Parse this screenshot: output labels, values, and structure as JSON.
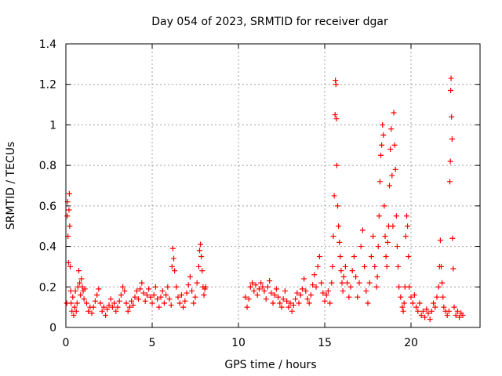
{
  "chart_data": {
    "type": "scatter",
    "title": "Day 054 of 2023, SRMTID for receiver dgar",
    "xlabel": "GPS time / hours",
    "ylabel": "SRMTID / TECUs",
    "xlim": [
      0,
      24
    ],
    "ylim": [
      0,
      1.4
    ],
    "x_ticks": [
      0,
      5,
      10,
      15,
      20
    ],
    "x_tick_labels": [
      "0",
      "5",
      "10",
      "15",
      "20"
    ],
    "y_ticks": [
      0,
      0.2,
      0.4,
      0.6,
      0.8,
      1.0,
      1.2,
      1.4
    ],
    "y_tick_labels": [
      "0",
      "0.2",
      "0.4",
      "0.6",
      "0.8",
      "1",
      "1.2",
      "1.4"
    ],
    "grid": true,
    "marker": "plus",
    "series": [
      {
        "name": "SRMTID",
        "color": "#ff0000",
        "points": [
          [
            0.05,
            0.12
          ],
          [
            0.08,
            0.55
          ],
          [
            0.1,
            0.62
          ],
          [
            0.12,
            0.45
          ],
          [
            0.15,
            0.32
          ],
          [
            0.18,
            0.58
          ],
          [
            0.2,
            0.66
          ],
          [
            0.22,
            0.5
          ],
          [
            0.25,
            0.3
          ],
          [
            0.28,
            0.18
          ],
          [
            0.3,
            0.12
          ],
          [
            0.35,
            0.08
          ],
          [
            0.4,
            0.15
          ],
          [
            0.45,
            0.06
          ],
          [
            0.5,
            0.1
          ],
          [
            0.55,
            0.18
          ],
          [
            0.6,
            0.08
          ],
          [
            0.65,
            0.12
          ],
          [
            0.7,
            0.2
          ],
          [
            0.75,
            0.28
          ],
          [
            0.8,
            0.22
          ],
          [
            0.85,
            0.16
          ],
          [
            0.9,
            0.24
          ],
          [
            0.95,
            0.2
          ],
          [
            1.0,
            0.18
          ],
          [
            1.05,
            0.14
          ],
          [
            1.1,
            0.19
          ],
          [
            1.2,
            0.12
          ],
          [
            1.3,
            0.08
          ],
          [
            1.4,
            0.1
          ],
          [
            1.5,
            0.07
          ],
          [
            1.6,
            0.1
          ],
          [
            1.7,
            0.13
          ],
          [
            1.8,
            0.16
          ],
          [
            1.9,
            0.19
          ],
          [
            2.0,
            0.12
          ],
          [
            2.1,
            0.08
          ],
          [
            2.2,
            0.1
          ],
          [
            2.3,
            0.06
          ],
          [
            2.4,
            0.09
          ],
          [
            2.5,
            0.11
          ],
          [
            2.6,
            0.14
          ],
          [
            2.7,
            0.1
          ],
          [
            2.8,
            0.12
          ],
          [
            2.9,
            0.08
          ],
          [
            3.0,
            0.1
          ],
          [
            3.1,
            0.13
          ],
          [
            3.2,
            0.16
          ],
          [
            3.3,
            0.2
          ],
          [
            3.4,
            0.18
          ],
          [
            3.5,
            0.12
          ],
          [
            3.6,
            0.08
          ],
          [
            3.7,
            0.1
          ],
          [
            3.8,
            0.13
          ],
          [
            3.9,
            0.11
          ],
          [
            4.0,
            0.15
          ],
          [
            4.1,
            0.18
          ],
          [
            4.2,
            0.14
          ],
          [
            4.3,
            0.19
          ],
          [
            4.4,
            0.22
          ],
          [
            4.5,
            0.17
          ],
          [
            4.6,
            0.13
          ],
          [
            4.7,
            0.16
          ],
          [
            4.8,
            0.19
          ],
          [
            4.9,
            0.15
          ],
          [
            5.0,
            0.12
          ],
          [
            5.1,
            0.16
          ],
          [
            5.2,
            0.2
          ],
          [
            5.3,
            0.14
          ],
          [
            5.4,
            0.1
          ],
          [
            5.5,
            0.15
          ],
          [
            5.6,
            0.18
          ],
          [
            5.7,
            0.12
          ],
          [
            5.8,
            0.16
          ],
          [
            5.9,
            0.2
          ],
          [
            6.0,
            0.14
          ],
          [
            6.1,
            0.11
          ],
          [
            6.15,
            0.3
          ],
          [
            6.2,
            0.39
          ],
          [
            6.25,
            0.34
          ],
          [
            6.3,
            0.28
          ],
          [
            6.4,
            0.2
          ],
          [
            6.5,
            0.15
          ],
          [
            6.6,
            0.12
          ],
          [
            6.7,
            0.16
          ],
          [
            6.8,
            0.1
          ],
          [
            6.9,
            0.13
          ],
          [
            7.0,
            0.17
          ],
          [
            7.1,
            0.21
          ],
          [
            7.2,
            0.25
          ],
          [
            7.3,
            0.18
          ],
          [
            7.4,
            0.12
          ],
          [
            7.5,
            0.15
          ],
          [
            7.6,
            0.22
          ],
          [
            7.7,
            0.3
          ],
          [
            7.75,
            0.38
          ],
          [
            7.8,
            0.41
          ],
          [
            7.85,
            0.35
          ],
          [
            7.9,
            0.28
          ],
          [
            7.95,
            0.2
          ],
          [
            8.0,
            0.16
          ],
          [
            8.05,
            0.19
          ],
          [
            8.1,
            0.2
          ],
          [
            10.4,
            0.15
          ],
          [
            10.5,
            0.1
          ],
          [
            10.6,
            0.14
          ],
          [
            10.7,
            0.2
          ],
          [
            10.8,
            0.22
          ],
          [
            10.9,
            0.18
          ],
          [
            11.0,
            0.21
          ],
          [
            11.1,
            0.16
          ],
          [
            11.2,
            0.19
          ],
          [
            11.3,
            0.22
          ],
          [
            11.4,
            0.2
          ],
          [
            11.5,
            0.18
          ],
          [
            11.6,
            0.14
          ],
          [
            11.7,
            0.2
          ],
          [
            11.8,
            0.23
          ],
          [
            11.9,
            0.17
          ],
          [
            12.0,
            0.12
          ],
          [
            12.1,
            0.16
          ],
          [
            12.2,
            0.19
          ],
          [
            12.3,
            0.15
          ],
          [
            12.4,
            0.12
          ],
          [
            12.5,
            0.1
          ],
          [
            12.6,
            0.14
          ],
          [
            12.7,
            0.18
          ],
          [
            12.8,
            0.13
          ],
          [
            12.9,
            0.1
          ],
          [
            13.0,
            0.12
          ],
          [
            13.1,
            0.08
          ],
          [
            13.2,
            0.11
          ],
          [
            13.3,
            0.14
          ],
          [
            13.4,
            0.17
          ],
          [
            13.5,
            0.12
          ],
          [
            13.6,
            0.16
          ],
          [
            13.7,
            0.19
          ],
          [
            13.8,
            0.24
          ],
          [
            13.9,
            0.18
          ],
          [
            14.0,
            0.14
          ],
          [
            14.1,
            0.12
          ],
          [
            14.2,
            0.16
          ],
          [
            14.3,
            0.21
          ],
          [
            14.4,
            0.26
          ],
          [
            14.5,
            0.2
          ],
          [
            14.6,
            0.3
          ],
          [
            14.7,
            0.35
          ],
          [
            14.8,
            0.22
          ],
          [
            14.9,
            0.17
          ],
          [
            15.0,
            0.13
          ],
          [
            15.1,
            0.16
          ],
          [
            15.2,
            0.18
          ],
          [
            15.3,
            0.12
          ],
          [
            15.4,
            0.22
          ],
          [
            15.45,
            0.3
          ],
          [
            15.5,
            0.45
          ],
          [
            15.55,
            0.65
          ],
          [
            15.6,
            1.05
          ],
          [
            15.62,
            1.22
          ],
          [
            15.65,
            1.2
          ],
          [
            15.68,
            1.03
          ],
          [
            15.7,
            0.8
          ],
          [
            15.75,
            0.6
          ],
          [
            15.8,
            0.5
          ],
          [
            15.85,
            0.42
          ],
          [
            15.9,
            0.35
          ],
          [
            15.95,
            0.28
          ],
          [
            16.0,
            0.22
          ],
          [
            16.05,
            0.18
          ],
          [
            16.1,
            0.25
          ],
          [
            16.2,
            0.3
          ],
          [
            16.3,
            0.22
          ],
          [
            16.4,
            0.15
          ],
          [
            16.5,
            0.2
          ],
          [
            16.6,
            0.28
          ],
          [
            16.7,
            0.35
          ],
          [
            16.8,
            0.25
          ],
          [
            16.9,
            0.15
          ],
          [
            17.0,
            0.22
          ],
          [
            17.1,
            0.4
          ],
          [
            17.2,
            0.48
          ],
          [
            17.3,
            0.3
          ],
          [
            17.4,
            0.18
          ],
          [
            17.5,
            0.12
          ],
          [
            17.6,
            0.22
          ],
          [
            17.7,
            0.35
          ],
          [
            17.8,
            0.45
          ],
          [
            17.9,
            0.3
          ],
          [
            18.0,
            0.2
          ],
          [
            18.05,
            0.25
          ],
          [
            18.1,
            0.4
          ],
          [
            18.15,
            0.55
          ],
          [
            18.2,
            0.72
          ],
          [
            18.25,
            0.85
          ],
          [
            18.3,
            0.9
          ],
          [
            18.35,
            1.0
          ],
          [
            18.4,
            0.95
          ],
          [
            18.45,
            0.6
          ],
          [
            18.5,
            0.45
          ],
          [
            18.55,
            0.35
          ],
          [
            18.6,
            0.3
          ],
          [
            18.65,
            0.42
          ],
          [
            18.7,
            0.5
          ],
          [
            18.75,
            0.7
          ],
          [
            18.8,
            0.88
          ],
          [
            18.85,
            0.98
          ],
          [
            18.9,
            0.75
          ],
          [
            18.95,
            0.5
          ],
          [
            19.0,
            1.06
          ],
          [
            19.05,
            0.9
          ],
          [
            19.1,
            0.78
          ],
          [
            19.15,
            0.55
          ],
          [
            19.2,
            0.4
          ],
          [
            19.25,
            0.3
          ],
          [
            19.3,
            0.2
          ],
          [
            19.4,
            0.15
          ],
          [
            19.5,
            0.1
          ],
          [
            19.55,
            0.08
          ],
          [
            19.6,
            0.12
          ],
          [
            19.65,
            0.2
          ],
          [
            19.7,
            0.45
          ],
          [
            19.75,
            0.55
          ],
          [
            19.8,
            0.5
          ],
          [
            19.85,
            0.35
          ],
          [
            19.9,
            0.2
          ],
          [
            20.0,
            0.15
          ],
          [
            20.1,
            0.12
          ],
          [
            20.2,
            0.16
          ],
          [
            20.3,
            0.1
          ],
          [
            20.4,
            0.08
          ],
          [
            20.5,
            0.12
          ],
          [
            20.6,
            0.06
          ],
          [
            20.7,
            0.08
          ],
          [
            20.8,
            0.05
          ],
          [
            20.9,
            0.09
          ],
          [
            21.0,
            0.07
          ],
          [
            21.1,
            0.04
          ],
          [
            21.2,
            0.08
          ],
          [
            21.3,
            0.12
          ],
          [
            21.4,
            0.1
          ],
          [
            21.5,
            0.15
          ],
          [
            21.6,
            0.2
          ],
          [
            21.65,
            0.3
          ],
          [
            21.7,
            0.43
          ],
          [
            21.75,
            0.3
          ],
          [
            21.8,
            0.22
          ],
          [
            21.85,
            0.15
          ],
          [
            21.9,
            0.1
          ],
          [
            22.0,
            0.08
          ],
          [
            22.1,
            0.06
          ],
          [
            22.2,
            0.08
          ],
          [
            22.25,
            0.72
          ],
          [
            22.28,
            0.82
          ],
          [
            22.3,
            1.17
          ],
          [
            22.32,
            1.23
          ],
          [
            22.35,
            1.04
          ],
          [
            22.38,
            0.93
          ],
          [
            22.4,
            0.44
          ],
          [
            22.45,
            0.29
          ],
          [
            22.5,
            0.1
          ],
          [
            22.6,
            0.06
          ],
          [
            22.7,
            0.08
          ],
          [
            22.8,
            0.05
          ],
          [
            22.9,
            0.07
          ],
          [
            23.0,
            0.06
          ]
        ]
      }
    ]
  }
}
